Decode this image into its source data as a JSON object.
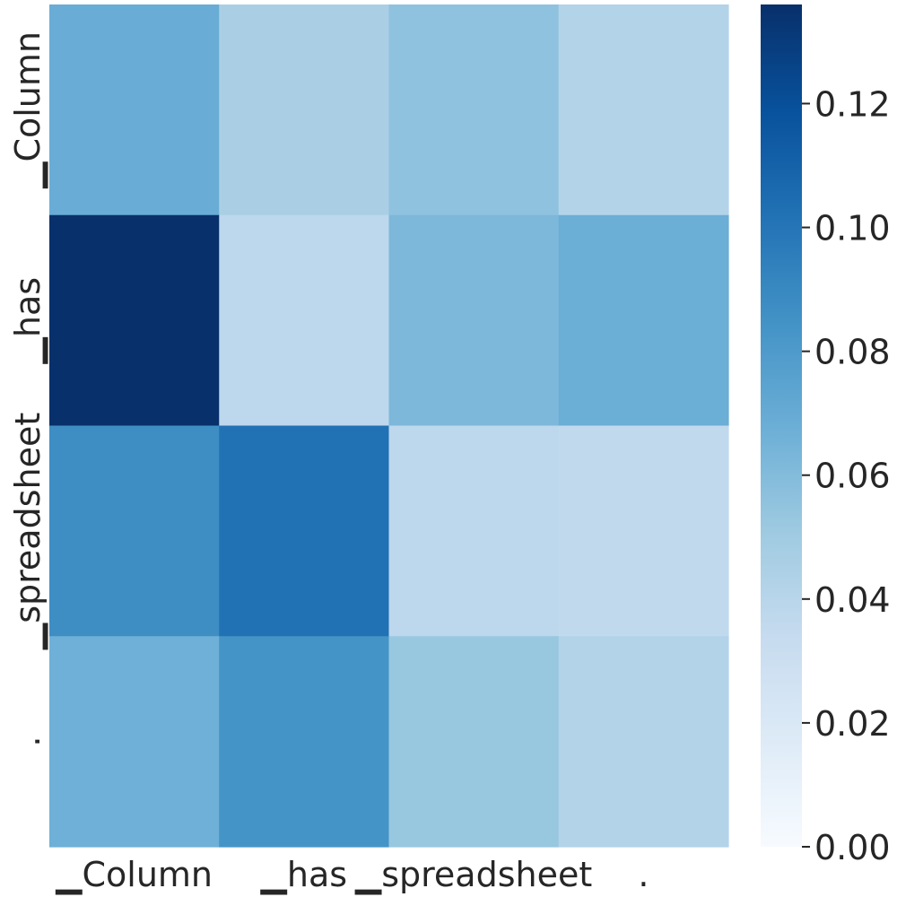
{
  "chart_data": {
    "type": "heatmap",
    "title": "",
    "xlabel": "",
    "ylabel": "",
    "x_tick_labels": [
      "▁Column",
      "▁has",
      "▁spreadsheet",
      "."
    ],
    "y_tick_labels": [
      "▁Column",
      "▁has",
      "▁spreadsheet",
      "."
    ],
    "values": [
      [
        0.069,
        0.046,
        0.056,
        0.042
      ],
      [
        0.136,
        0.038,
        0.062,
        0.068
      ],
      [
        0.087,
        0.102,
        0.038,
        0.036
      ],
      [
        0.067,
        0.084,
        0.053,
        0.042
      ]
    ],
    "colormap": "Blues",
    "colorbar": {
      "range": [
        0,
        0.136
      ],
      "ticks": [
        0.0,
        0.02,
        0.04,
        0.06,
        0.08,
        0.1,
        0.12
      ],
      "tick_labels": [
        "0.00",
        "0.02",
        "0.04",
        "0.06",
        "0.08",
        "0.10",
        "0.12"
      ]
    },
    "grid": false
  }
}
